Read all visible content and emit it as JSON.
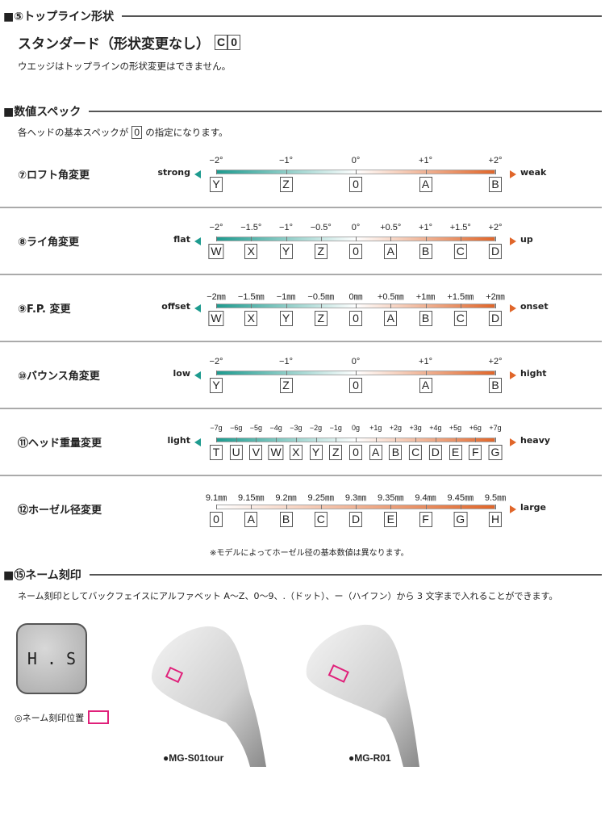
{
  "sections": {
    "topline": {
      "heading": "■⑤トップライン形状",
      "title": "スタンダード（形状変更なし）",
      "codes": [
        "C",
        "0"
      ],
      "note": "ウエッジはトップラインの形状変更はできません。"
    },
    "spec": {
      "heading": "■数値スペック",
      "note_before": "各ヘッドの基本スペックが",
      "note_code": "0",
      "note_after": "の指定になります。"
    },
    "name": {
      "heading": "■⑮ネーム刻印",
      "note": "ネーム刻印としてバックフェイスにアルファベット A〜Z、0〜9、.（ドット）、ー（ハイフン）から 3 文字まで入れることができます。",
      "sample": "H . S",
      "position_label": "◎ネーム刻印位置",
      "models": [
        "●MG-S01tour",
        "●MG-R01"
      ]
    }
  },
  "rows": [
    {
      "title": "⑦ロフト角変更",
      "left": "strong",
      "right": "weak",
      "ticks": [
        "−2°",
        "−1°",
        "0°",
        "+1°",
        "+2°"
      ],
      "codes": [
        "Y",
        "Z",
        "0",
        "A",
        "B"
      ],
      "gradient": "two-way"
    },
    {
      "title": "⑧ライ角変更",
      "left": "flat",
      "right": "up",
      "ticks": [
        "−2°",
        "−1.5°",
        "−1°",
        "−0.5°",
        "0°",
        "+0.5°",
        "+1°",
        "+1.5°",
        "+2°"
      ],
      "codes": [
        "W",
        "X",
        "Y",
        "Z",
        "0",
        "A",
        "B",
        "C",
        "D"
      ],
      "gradient": "two-way"
    },
    {
      "title": "⑨F.P. 変更",
      "left": "offset",
      "right": "onset",
      "ticks": [
        "−2㎜",
        "−1.5㎜",
        "−1㎜",
        "−0.5㎜",
        "0㎜",
        "+0.5㎜",
        "+1㎜",
        "+1.5㎜",
        "+2㎜"
      ],
      "codes": [
        "W",
        "X",
        "Y",
        "Z",
        "0",
        "A",
        "B",
        "C",
        "D"
      ],
      "gradient": "two-way"
    },
    {
      "title": "⑩バウンス角変更",
      "left": "low",
      "right": "hight",
      "ticks": [
        "−2°",
        "−1°",
        "0°",
        "+1°",
        "+2°"
      ],
      "codes": [
        "Y",
        "Z",
        "0",
        "A",
        "B"
      ],
      "gradient": "two-way"
    },
    {
      "title": "⑪ヘッド重量変更",
      "left": "light",
      "right": "heavy",
      "ticks": [
        "−7g",
        "−6g",
        "−5g",
        "−4g",
        "−3g",
        "−2g",
        "−1g",
        "0g",
        "+1g",
        "+2g",
        "+3g",
        "+4g",
        "+5g",
        "+6g",
        "+7g"
      ],
      "codes": [
        "T",
        "U",
        "V",
        "W",
        "X",
        "Y",
        "Z",
        "0",
        "A",
        "B",
        "C",
        "D",
        "E",
        "F",
        "G"
      ],
      "gradient": "two-way"
    },
    {
      "title": "⑫ホーゼル径変更",
      "left": "",
      "right": "large",
      "ticks": [
        "9.1㎜",
        "9.15㎜",
        "9.2㎜",
        "9.25㎜",
        "9.3㎜",
        "9.35㎜",
        "9.4㎜",
        "9.45㎜",
        "9.5㎜"
      ],
      "codes": [
        "0",
        "A",
        "B",
        "C",
        "D",
        "E",
        "F",
        "G",
        "H"
      ],
      "gradient": "one-way",
      "note": "※モデルによってホーゼル径の基本数値は異なります。"
    }
  ],
  "colors": {
    "teal": "#1e9b8f",
    "orange": "#e0662a",
    "marker": "#e0207a"
  }
}
